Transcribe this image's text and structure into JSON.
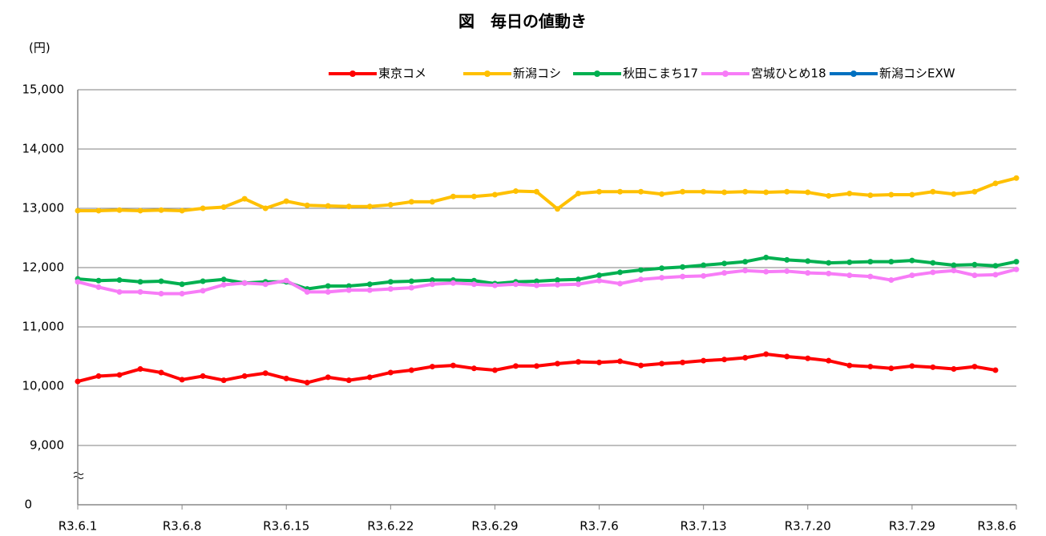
{
  "chart_data": {
    "type": "line",
    "title": "図　毎日の値動き",
    "y_label": "(円)",
    "categories": [
      "R3.6.1",
      null,
      null,
      null,
      null,
      "R3.6.8",
      null,
      null,
      null,
      null,
      "R3.6.15",
      null,
      null,
      null,
      null,
      "R3.6.22",
      null,
      null,
      null,
      null,
      "R3.6.29",
      null,
      null,
      null,
      null,
      "R3.7.6",
      null,
      null,
      null,
      null,
      "R3.7.13",
      null,
      null,
      null,
      null,
      "R3.7.20",
      null,
      null,
      null,
      null,
      "R3.7.29",
      null,
      null,
      null,
      null,
      "R3.8.6"
    ],
    "series": [
      {
        "name": "東京コメ",
        "color": "#ff0000",
        "values": [
          10080,
          10170,
          10190,
          10290,
          10230,
          10110,
          10170,
          10100,
          10170,
          10220,
          10130,
          10060,
          10150,
          10100,
          10150,
          10230,
          10270,
          10330,
          10350,
          10300,
          10270,
          10340,
          10340,
          10380,
          10410,
          10400,
          10420,
          10350,
          10380,
          10400,
          10430,
          10450,
          10480,
          10540,
          10500,
          10470,
          10430,
          10350,
          10330,
          10300,
          10340,
          10320,
          10290,
          10330,
          10270,
          null
        ]
      },
      {
        "name": "新潟コシ",
        "color": "#ffc000",
        "values": [
          12960,
          12960,
          12970,
          12960,
          12970,
          12960,
          13000,
          13020,
          13160,
          13000,
          13120,
          13050,
          13040,
          13030,
          13030,
          13060,
          13110,
          13110,
          13200,
          13200,
          13230,
          13290,
          13280,
          12990,
          13250,
          13280,
          13280,
          13280,
          13240,
          13280,
          13280,
          13270,
          13280,
          13270,
          13280,
          13270,
          13210,
          13250,
          13220,
          13230,
          13230,
          13280,
          13240,
          13280,
          13420,
          13510
        ]
      },
      {
        "name": "秋田こまち17",
        "color": "#00b050",
        "values": [
          11810,
          11780,
          11790,
          11760,
          11770,
          11720,
          11770,
          11800,
          11740,
          11760,
          11760,
          11640,
          11690,
          11690,
          11720,
          11760,
          11770,
          11790,
          11790,
          11780,
          11730,
          11760,
          11770,
          11790,
          11800,
          11870,
          11920,
          11960,
          11990,
          12010,
          12040,
          12070,
          12100,
          12170,
          12130,
          12110,
          12080,
          12090,
          12100,
          12100,
          12120,
          12080,
          12040,
          12050,
          12030,
          12100
        ]
      },
      {
        "name": "宮城ひとめ18",
        "color": "#f77cf7",
        "values": [
          11760,
          11670,
          11590,
          11590,
          11560,
          11560,
          11610,
          11710,
          11740,
          11720,
          11780,
          11590,
          11590,
          11620,
          11620,
          11640,
          11660,
          11720,
          11740,
          11720,
          11700,
          11720,
          11700,
          11710,
          11720,
          11780,
          11730,
          11800,
          11830,
          11850,
          11860,
          11910,
          11950,
          11930,
          11940,
          11910,
          11900,
          11870,
          11850,
          11790,
          11870,
          11920,
          11950,
          11870,
          11880,
          11970
        ]
      },
      {
        "name": "新潟コシEXW",
        "color": "#0070c0",
        "values": [
          null,
          null,
          null,
          null,
          null,
          null,
          null,
          null,
          null,
          null,
          null,
          null,
          null,
          null,
          null,
          null,
          null,
          null,
          null,
          null,
          null,
          null,
          null,
          null,
          null,
          null,
          null,
          null,
          null,
          null,
          null,
          null,
          null,
          null,
          null,
          null,
          null,
          null,
          null,
          null,
          null,
          null,
          null,
          null,
          null,
          null
        ]
      }
    ],
    "ylim": [
      0,
      15000
    ],
    "yticks": [
      0,
      {
        "value": 9000,
        "label": "9,000"
      },
      {
        "value": 10000,
        "label": "10,000"
      },
      {
        "value": 11000,
        "label": "11,000"
      },
      {
        "value": 12000,
        "label": "12,000"
      },
      {
        "value": 13000,
        "label": "13,000"
      },
      {
        "value": 14000,
        "label": "14,000"
      },
      {
        "value": 15000,
        "label": "15,000"
      }
    ],
    "axis_break": true,
    "grid": true,
    "legend": "top-right"
  }
}
